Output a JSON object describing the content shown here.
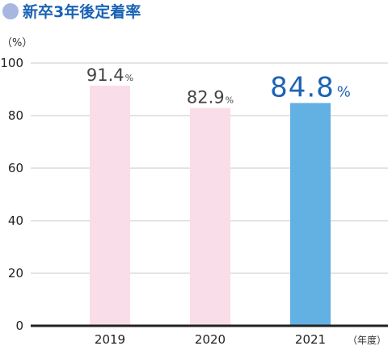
{
  "chart_data": {
    "type": "bar",
    "title": "新卒3年後定着率",
    "y_unit_label": "（%）",
    "x_unit_label": "（年度）",
    "categories": [
      "2019",
      "2020",
      "2021"
    ],
    "values": [
      91.4,
      82.9,
      84.8
    ],
    "value_labels": [
      "91.4",
      "82.9",
      "84.8"
    ],
    "value_suffix": "%",
    "highlight_index": 2,
    "ylim": [
      0,
      100
    ],
    "yticks": [
      0,
      20,
      40,
      60,
      80,
      100
    ],
    "grid": true,
    "colors": {
      "bar": "#f9dde9",
      "highlight_bar": "#63b0e3"
    }
  }
}
